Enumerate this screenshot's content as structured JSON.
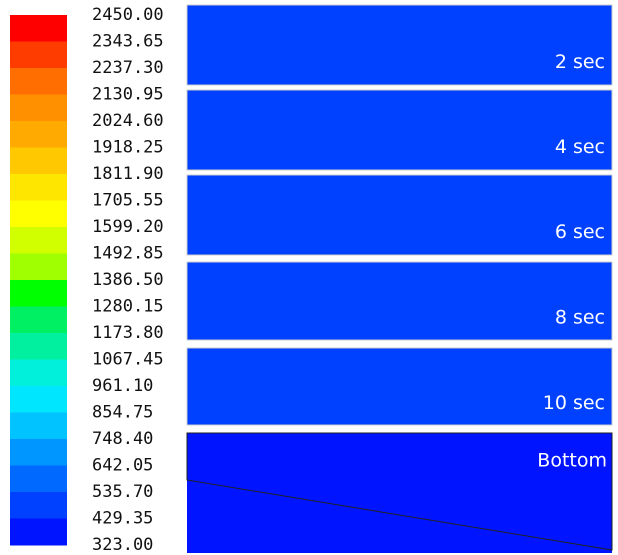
{
  "colorbar": {
    "labels": [
      "2450.00",
      "2343.65",
      "2237.30",
      "2130.95",
      "2024.60",
      "1918.25",
      "1811.90",
      "1705.55",
      "1599.20",
      "1492.85",
      "1386.50",
      "1280.15",
      "1173.80",
      "1067.45",
      "961.10",
      "854.75",
      "748.40",
      "642.05",
      "535.70",
      "429.35",
      "323.00"
    ],
    "colors": [
      "#ff0000",
      "#ff3c00",
      "#ff6e00",
      "#ff9100",
      "#ffaa00",
      "#ffc800",
      "#ffe600",
      "#ffff00",
      "#d2ff00",
      "#a0ff00",
      "#00ff00",
      "#00f064",
      "#00f0a0",
      "#00f0dc",
      "#00e6ff",
      "#00c3ff",
      "#0096ff",
      "#0069ff",
      "#0041ff",
      "#0014ff"
    ]
  },
  "panels": [
    {
      "label": "2 sec"
    },
    {
      "label": "4 sec"
    },
    {
      "label": "6 sec"
    },
    {
      "label": "8 sec"
    },
    {
      "label": "10 sec"
    },
    {
      "label": "Bottom"
    }
  ]
}
